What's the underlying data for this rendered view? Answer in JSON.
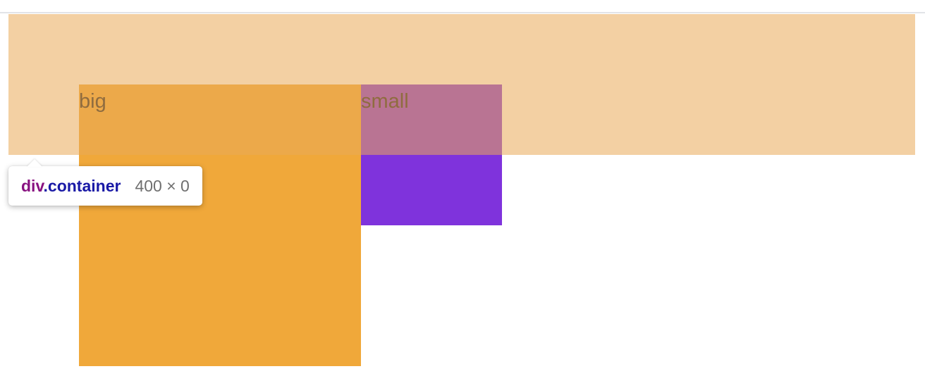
{
  "boxes": {
    "big_label": "big",
    "small_label": "small",
    "big_color": "#f0a83a",
    "small_color": "#7f33dc"
  },
  "inspector": {
    "highlight_color": "#eaa958",
    "tooltip": {
      "tag": "div",
      "class": ".container",
      "size": "400 × 0"
    }
  }
}
